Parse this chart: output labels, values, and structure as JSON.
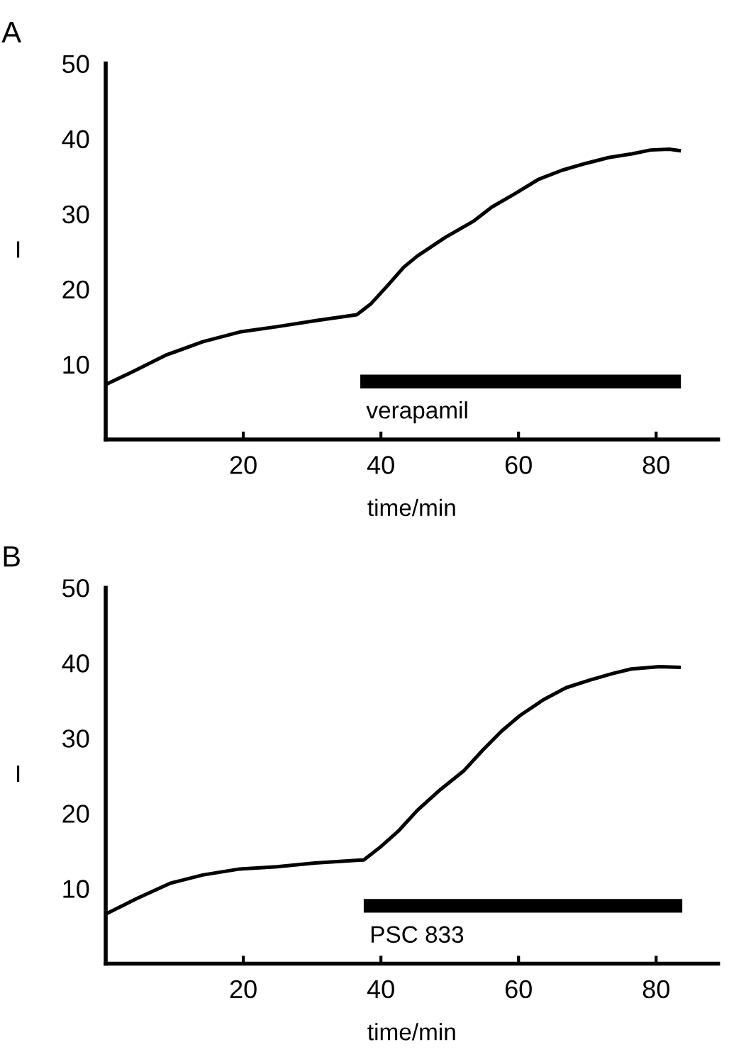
{
  "chart_data": [
    {
      "type": "line",
      "title": "A",
      "xlabel": "time/min",
      "ylabel": "I",
      "xlim": [
        0,
        89
      ],
      "ylim": [
        0,
        50
      ],
      "xticks": [
        20,
        40,
        60,
        80
      ],
      "yticks": [
        10,
        20,
        30,
        40,
        50
      ],
      "grid": false,
      "series": [
        {
          "color": "#000000",
          "x": [
            0,
            3.9,
            8.7,
            14.1,
            19.5,
            24.9,
            30.4,
            36.5,
            38.5,
            41.2,
            43.3,
            45.3,
            49.4,
            53.4,
            56.1,
            59.5,
            62.9,
            66.3,
            69.7,
            73.1,
            76.5,
            79.2,
            81.9,
            83.6
          ],
          "values": [
            7.3,
            9.0,
            11.2,
            13.0,
            14.3,
            15.0,
            15.8,
            16.6,
            18.0,
            20.7,
            22.9,
            24.4,
            26.9,
            29.0,
            30.9,
            32.7,
            34.6,
            35.8,
            36.7,
            37.5,
            38.0,
            38.5,
            38.6,
            38.4
          ]
        },
        {
          "color": "#000000",
          "x": [
            37,
            83.6
          ],
          "values": [
            7.7,
            7.7
          ]
        }
      ],
      "annotations": [
        {
          "text": "verapamil",
          "x": 37,
          "y": 7.7
        }
      ]
    },
    {
      "type": "line",
      "title": "B",
      "xlabel": "time/min",
      "ylabel": "I",
      "xlim": [
        0,
        89
      ],
      "ylim": [
        0,
        50
      ],
      "xticks": [
        20,
        40,
        60,
        80
      ],
      "yticks": [
        10,
        20,
        30,
        40,
        50
      ],
      "grid": false,
      "series": [
        {
          "color": "#000000",
          "x": [
            0,
            4.6,
            9.4,
            14.1,
            19.5,
            24.9,
            30.4,
            37.5,
            39.9,
            42.6,
            45.3,
            48.7,
            52.1,
            54.8,
            57.5,
            60.2,
            63.6,
            66.9,
            70.3,
            73.7,
            76.4,
            80.5,
            83.6
          ],
          "values": [
            6.6,
            8.7,
            10.7,
            11.8,
            12.6,
            12.9,
            13.4,
            13.8,
            15.5,
            17.7,
            20.4,
            23.2,
            25.7,
            28.4,
            30.9,
            33.0,
            35.1,
            36.7,
            37.7,
            38.6,
            39.2,
            39.5,
            39.4
          ]
        },
        {
          "color": "#000000",
          "x": [
            37.5,
            83.8
          ],
          "values": [
            7.7,
            7.7
          ]
        }
      ],
      "annotations": [
        {
          "text": "PSC 833",
          "x": 37.5,
          "y": 7.7
        }
      ]
    }
  ]
}
